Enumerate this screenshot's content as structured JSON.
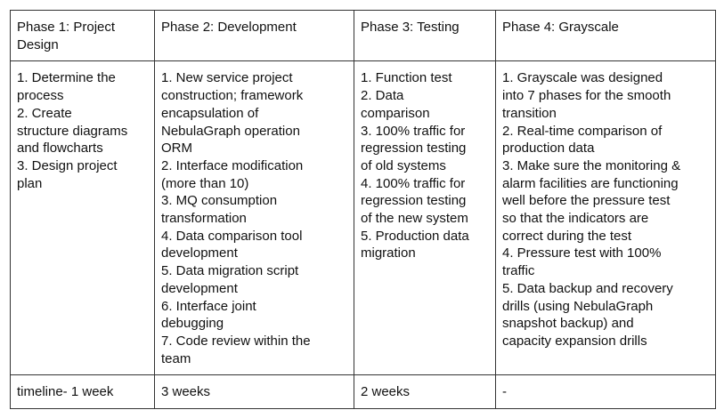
{
  "headers": [
    [
      "Phase 1: Project",
      "Design"
    ],
    [
      "Phase 2: Development"
    ],
    [
      "Phase 3: Testing"
    ],
    [
      "Phase 4: Grayscale"
    ]
  ],
  "body": [
    [
      "1. Determine the",
      "process",
      "2.  Create",
      "structure diagrams",
      "and flowcharts",
      "3. Design project",
      "plan"
    ],
    [
      "1. New service project",
      "construction; framework",
      "encapsulation of",
      "NebulaGraph operation",
      "ORM",
      "2. Interface modification",
      "(more than 10)",
      "3. MQ consumption",
      "transformation",
      "4. Data comparison tool",
      "development",
      "5. Data migration script",
      "development",
      "6. Interface joint",
      "debugging",
      "7. Code review within the",
      "team"
    ],
    [
      "1. Function test",
      "2. Data",
      "comparison",
      "3. 100% traffic for",
      "regression testing",
      "of old systems",
      "4. 100% traffic for",
      "regression testing",
      "of the new system",
      "5. Production data",
      "migration"
    ],
    [
      "1. Grayscale was designed",
      "into 7 phases for the smooth",
      "transition",
      "2. Real-time comparison of",
      "production data",
      "3. Make sure the monitoring &",
      "alarm facilities are functioning",
      "well before the pressure test",
      "so that the indicators are",
      "correct during the test",
      "4. Pressure test with 100%",
      "traffic",
      "5. Data backup and recovery",
      "drills (using NebulaGraph",
      "snapshot backup) and",
      "capacity expansion drills"
    ]
  ],
  "timeline": [
    "timeline- 1 week",
    "3 weeks",
    "2 weeks",
    "-"
  ]
}
